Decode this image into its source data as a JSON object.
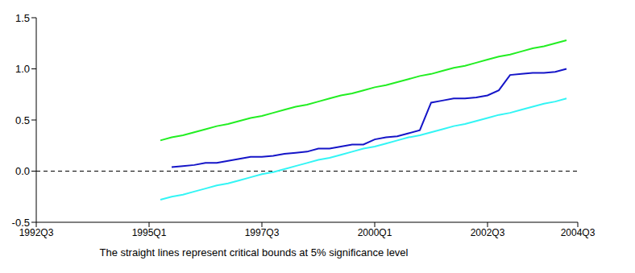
{
  "chart_data": {
    "type": "line",
    "caption": "The straight lines represent critical bounds at 5% significance level",
    "x": [
      1995.25,
      1995.5,
      1995.75,
      1996.0,
      1996.25,
      1996.5,
      1996.75,
      1997.0,
      1997.25,
      1997.5,
      1997.75,
      1998.0,
      1998.25,
      1998.5,
      1998.75,
      1999.0,
      1999.25,
      1999.5,
      1999.75,
      2000.0,
      2000.25,
      2000.5,
      2000.75,
      2001.0,
      2001.25,
      2001.5,
      2001.75,
      2002.0,
      2002.25,
      2002.5,
      2002.75,
      2003.0,
      2003.25,
      2003.5,
      2003.75,
      2004.0,
      2004.25
    ],
    "series": [
      {
        "color": "#22ee22",
        "line_style": "solid",
        "values": [
          0.3,
          0.33,
          0.35,
          0.38,
          0.41,
          0.44,
          0.46,
          0.49,
          0.52,
          0.54,
          0.57,
          0.6,
          0.63,
          0.65,
          0.68,
          0.71,
          0.74,
          0.76,
          0.79,
          0.82,
          0.84,
          0.87,
          0.9,
          0.93,
          0.95,
          0.98,
          1.01,
          1.03,
          1.06,
          1.09,
          1.12,
          1.14,
          1.17,
          1.2,
          1.22,
          1.25,
          1.28
        ]
      },
      {
        "color": "#1515c8",
        "line_style": "solid",
        "values": [
          null,
          0.04,
          0.05,
          0.06,
          0.08,
          0.08,
          0.1,
          0.12,
          0.14,
          0.14,
          0.15,
          0.17,
          0.18,
          0.19,
          0.22,
          0.22,
          0.24,
          0.26,
          0.26,
          0.31,
          0.33,
          0.34,
          0.37,
          0.4,
          0.67,
          0.69,
          0.71,
          0.71,
          0.72,
          0.74,
          0.79,
          0.94,
          0.95,
          0.96,
          0.96,
          0.97,
          1.0
        ]
      },
      {
        "color": "#33f5f5",
        "line_style": "solid",
        "values": [
          -0.28,
          -0.25,
          -0.23,
          -0.2,
          -0.17,
          -0.14,
          -0.12,
          -0.09,
          -0.06,
          -0.03,
          -0.01,
          0.02,
          0.05,
          0.08,
          0.11,
          0.13,
          0.16,
          0.19,
          0.22,
          0.24,
          0.27,
          0.3,
          0.33,
          0.35,
          0.38,
          0.41,
          0.44,
          0.46,
          0.49,
          0.52,
          0.55,
          0.57,
          0.6,
          0.63,
          0.66,
          0.68,
          0.71
        ]
      }
    ],
    "xlim": [
      1992.5,
      2004.5
    ],
    "xticks": [
      {
        "value": 1992.5,
        "label": "1992Q3"
      },
      {
        "value": 1995.0,
        "label": "1995Q1"
      },
      {
        "value": 1997.5,
        "label": "1997Q3"
      },
      {
        "value": 2000.0,
        "label": "2000Q1"
      },
      {
        "value": 2002.5,
        "label": "2002Q3"
      },
      {
        "value": 2004.5,
        "label": "2004Q3"
      }
    ],
    "ylim": [
      -0.5,
      1.5
    ],
    "yticks": [
      {
        "value": -0.5,
        "label": "-0.5"
      },
      {
        "value": 0.0,
        "label": "0.0"
      },
      {
        "value": 0.5,
        "label": "0.5"
      },
      {
        "value": 1.0,
        "label": "1.0"
      },
      {
        "value": 1.5,
        "label": "1.5"
      }
    ],
    "reference_lines": [
      {
        "y": 0,
        "line_style": "dashed"
      }
    ],
    "grid": false
  }
}
